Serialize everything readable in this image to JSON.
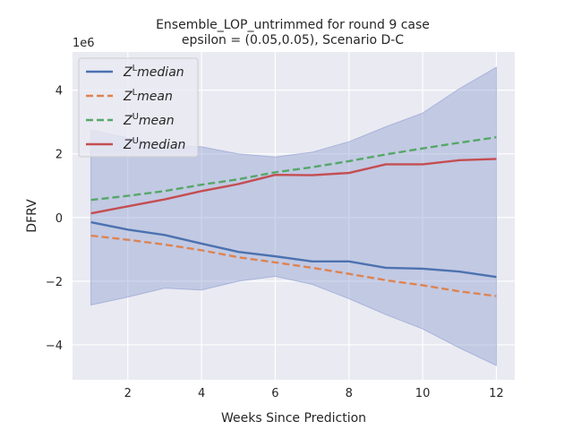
{
  "chart_data": {
    "type": "line",
    "title_line1": "Ensemble_LOP_untrimmed for round 9 case",
    "title_line2": "epsilon = (0.05,0.05), Scenario D-C",
    "xlabel": "Weeks Since Prediction",
    "ylabel": "DFRV",
    "y_offset_label": "1e6",
    "xlim": [
      0.5,
      12.5
    ],
    "ylim": [
      -5.1,
      5.2
    ],
    "x_ticks": [
      2,
      4,
      6,
      8,
      10,
      12
    ],
    "y_ticks": [
      -4,
      -2,
      0,
      2,
      4
    ],
    "grid": true,
    "legend_position": "top-left",
    "x": [
      1,
      2,
      3,
      4,
      5,
      6,
      7,
      8,
      9,
      10,
      11,
      12
    ],
    "band": {
      "color": "#8a9ccf",
      "lower": [
        -2.75,
        -2.5,
        -2.22,
        -2.28,
        -2.0,
        -1.85,
        -2.1,
        -2.55,
        -3.05,
        -3.5,
        -4.1,
        -4.65
      ],
      "upper": [
        2.75,
        2.5,
        2.28,
        2.22,
        2.0,
        1.9,
        2.05,
        2.38,
        2.85,
        3.28,
        4.05,
        4.72
      ]
    },
    "series": [
      {
        "name": "median",
        "var": "Z",
        "sup": "L",
        "color": "#4c72b0",
        "dashed": false,
        "values": [
          -0.15,
          -0.38,
          -0.55,
          -0.82,
          -1.08,
          -1.22,
          -1.38,
          -1.38,
          -1.58,
          -1.61,
          -1.7,
          -1.87
        ]
      },
      {
        "name": "mean",
        "var": "Z",
        "sup": "L",
        "color": "#dd8452",
        "dashed": true,
        "values": [
          -0.57,
          -0.7,
          -0.85,
          -1.03,
          -1.25,
          -1.41,
          -1.58,
          -1.77,
          -1.97,
          -2.13,
          -2.32,
          -2.47
        ]
      },
      {
        "name": "mean",
        "var": "Z",
        "sup": "U",
        "color": "#55a868",
        "dashed": true,
        "values": [
          0.55,
          0.68,
          0.83,
          1.03,
          1.2,
          1.42,
          1.58,
          1.77,
          1.98,
          2.17,
          2.35,
          2.52
        ]
      },
      {
        "name": "median",
        "var": "Z",
        "sup": "U",
        "color": "#c44e52",
        "dashed": false,
        "values": [
          0.13,
          0.35,
          0.57,
          0.83,
          1.05,
          1.34,
          1.33,
          1.4,
          1.67,
          1.67,
          1.8,
          1.84
        ]
      }
    ]
  }
}
